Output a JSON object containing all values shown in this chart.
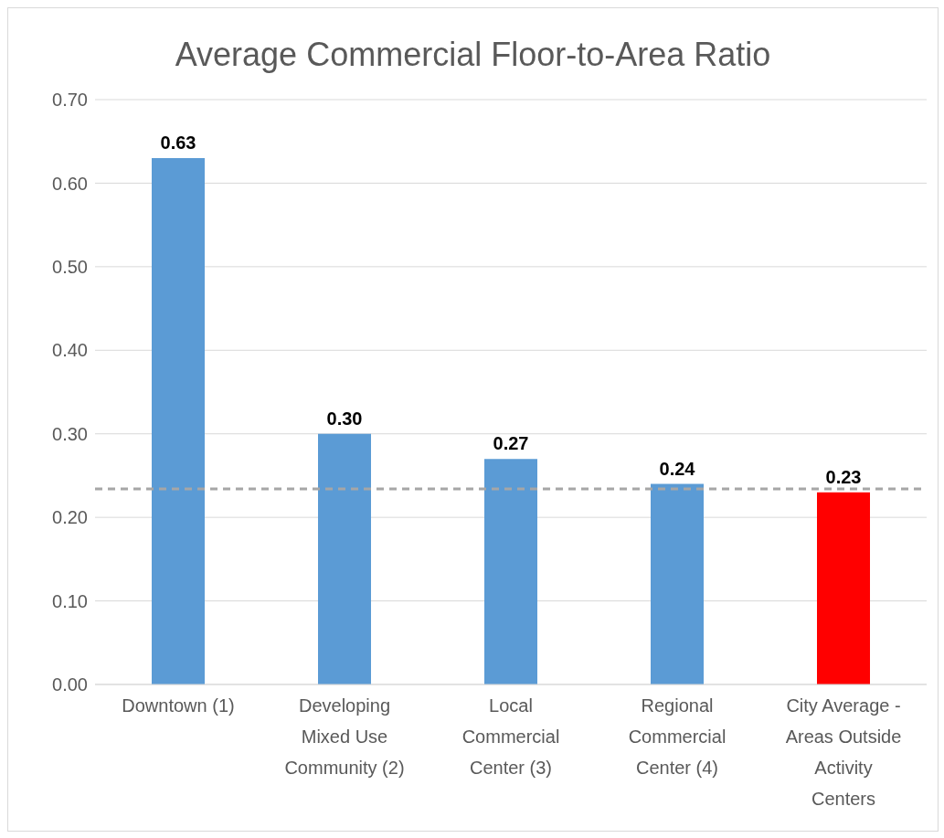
{
  "chart_data": {
    "type": "bar",
    "title": "Average Commercial Floor-to-Area Ratio",
    "categories": [
      "Downtown (1)",
      "Developing Mixed Use Community (2)",
      "Local Commercial Center (3)",
      "Regional Commercial Center (4)",
      "City Average - Areas Outside Activity Centers"
    ],
    "values": [
      0.63,
      0.3,
      0.27,
      0.24,
      0.23
    ],
    "colors": [
      "#5b9bd5",
      "#5b9bd5",
      "#5b9bd5",
      "#5b9bd5",
      "#ff0000"
    ],
    "value_labels": [
      "0.63",
      "0.30",
      "0.27",
      "0.24",
      "0.23"
    ],
    "ylim": [
      0,
      0.7
    ],
    "yticks": [
      {
        "value": 0,
        "label": "0.00"
      },
      {
        "value": 0.1,
        "label": "0.10"
      },
      {
        "value": 0.2,
        "label": "0.20"
      },
      {
        "value": 0.3,
        "label": "0.30"
      },
      {
        "value": 0.4,
        "label": "0.40"
      },
      {
        "value": 0.5,
        "label": "0.50"
      },
      {
        "value": 0.6,
        "label": "0.60"
      },
      {
        "value": 0.7,
        "label": "0.70"
      }
    ],
    "grid": "y",
    "ref_lines": [
      {
        "axis": "y",
        "value": 0.234,
        "color": "#a6a6a6",
        "line_style": "dashed"
      }
    ]
  }
}
